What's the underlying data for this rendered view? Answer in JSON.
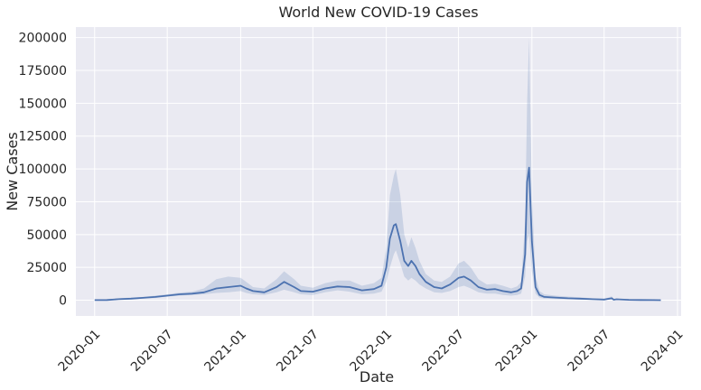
{
  "chart_data": {
    "type": "line",
    "title": "World New COVID-19 Cases",
    "xlabel": "Date",
    "ylabel": "New Cases",
    "xlim": [
      "2019-11-15",
      "2024-01-10"
    ],
    "ylim": [
      -12000,
      208000
    ],
    "x_ticks": [
      "2020-01",
      "2020-07",
      "2021-01",
      "2021-07",
      "2022-01",
      "2022-07",
      "2023-01",
      "2023-07",
      "2024-01"
    ],
    "y_ticks": [
      0,
      25000,
      50000,
      75000,
      100000,
      125000,
      150000,
      175000,
      200000
    ],
    "y_tick_labels": [
      "0",
      "25000",
      "50000",
      "75000",
      "100000",
      "125000",
      "150000",
      "175000",
      "200000"
    ],
    "grid": true,
    "colors": {
      "line": "#4c72b0",
      "band": "#4c72b0",
      "background": "#eaeaf2",
      "grid": "#ffffff"
    },
    "series": [
      {
        "x": [
          "2020-01-01",
          "2020-02-01",
          "2020-03-01",
          "2020-04-01",
          "2020-05-01",
          "2020-06-01",
          "2020-07-01",
          "2020-08-01",
          "2020-09-01",
          "2020-10-01",
          "2020-11-01",
          "2020-12-01",
          "2021-01-01",
          "2021-01-15",
          "2021-02-01",
          "2021-03-01",
          "2021-04-01",
          "2021-04-20",
          "2021-05-15",
          "2021-06-01",
          "2021-07-01",
          "2021-08-01",
          "2021-09-01",
          "2021-10-01",
          "2021-11-01",
          "2021-12-01",
          "2021-12-20",
          "2022-01-01",
          "2022-01-10",
          "2022-01-20",
          "2022-01-25",
          "2022-02-05",
          "2022-02-15",
          "2022-02-25",
          "2022-03-05",
          "2022-03-15",
          "2022-03-25",
          "2022-04-10",
          "2022-05-01",
          "2022-05-20",
          "2022-06-10",
          "2022-07-01",
          "2022-07-15",
          "2022-08-01",
          "2022-08-20",
          "2022-09-10",
          "2022-10-01",
          "2022-10-20",
          "2022-11-10",
          "2022-11-25",
          "2022-12-05",
          "2022-12-15",
          "2022-12-20",
          "2022-12-25",
          "2023-01-01",
          "2023-01-10",
          "2023-01-20",
          "2023-02-01",
          "2023-03-01",
          "2023-04-01",
          "2023-05-01",
          "2023-06-01",
          "2023-07-01",
          "2023-07-20",
          "2023-07-25",
          "2023-08-01",
          "2023-09-01",
          "2023-10-01",
          "2023-11-01",
          "2023-11-20"
        ],
        "mean": [
          100,
          200,
          800,
          1200,
          1800,
          2500,
          3500,
          4500,
          5000,
          6000,
          9000,
          10000,
          11000,
          9000,
          7000,
          6000,
          10000,
          14000,
          10000,
          7000,
          6500,
          9000,
          10500,
          10000,
          7500,
          8500,
          11000,
          25000,
          47000,
          57000,
          58000,
          45000,
          30000,
          26000,
          30000,
          26000,
          20000,
          14000,
          10000,
          9000,
          12000,
          17000,
          18000,
          15000,
          10000,
          8000,
          8500,
          7000,
          6000,
          7000,
          9000,
          35000,
          90000,
          101000,
          45000,
          10000,
          4000,
          2500,
          2000,
          1500,
          1200,
          800,
          500,
          1500,
          400,
          700,
          300,
          200,
          100,
          50
        ],
        "lower": [
          0,
          50,
          400,
          700,
          1200,
          1700,
          2800,
          3500,
          4000,
          4500,
          5500,
          6000,
          7000,
          5500,
          4500,
          4000,
          6000,
          8000,
          6000,
          4500,
          4000,
          6000,
          7500,
          6500,
          4500,
          5000,
          6500,
          14000,
          25000,
          35000,
          38000,
          28000,
          18000,
          15000,
          17000,
          15000,
          12000,
          9000,
          6000,
          5500,
          7000,
          10000,
          11000,
          9000,
          6000,
          5000,
          5000,
          4000,
          3500,
          4000,
          5000,
          18000,
          45000,
          50000,
          22000,
          5000,
          2000,
          1200,
          900,
          700,
          500,
          300,
          150,
          500,
          100,
          200,
          50,
          30,
          10,
          0
        ],
        "upper": [
          300,
          500,
          1500,
          2000,
          2500,
          3500,
          4500,
          5800,
          6500,
          9000,
          16000,
          18000,
          17000,
          14000,
          10000,
          9000,
          16000,
          22000,
          16000,
          11000,
          9500,
          13000,
          15000,
          15000,
          11000,
          13000,
          17000,
          40000,
          80000,
          95000,
          100000,
          80000,
          50000,
          40000,
          48000,
          40000,
          30000,
          20000,
          15000,
          14000,
          18000,
          28000,
          30000,
          25000,
          16000,
          12000,
          12500,
          11000,
          9000,
          10500,
          14000,
          60000,
          150000,
          200000,
          80000,
          18000,
          7000,
          4500,
          3500,
          2800,
          2200,
          1500,
          1000,
          3000,
          800,
          1300,
          600,
          400,
          250,
          150
        ]
      }
    ]
  }
}
